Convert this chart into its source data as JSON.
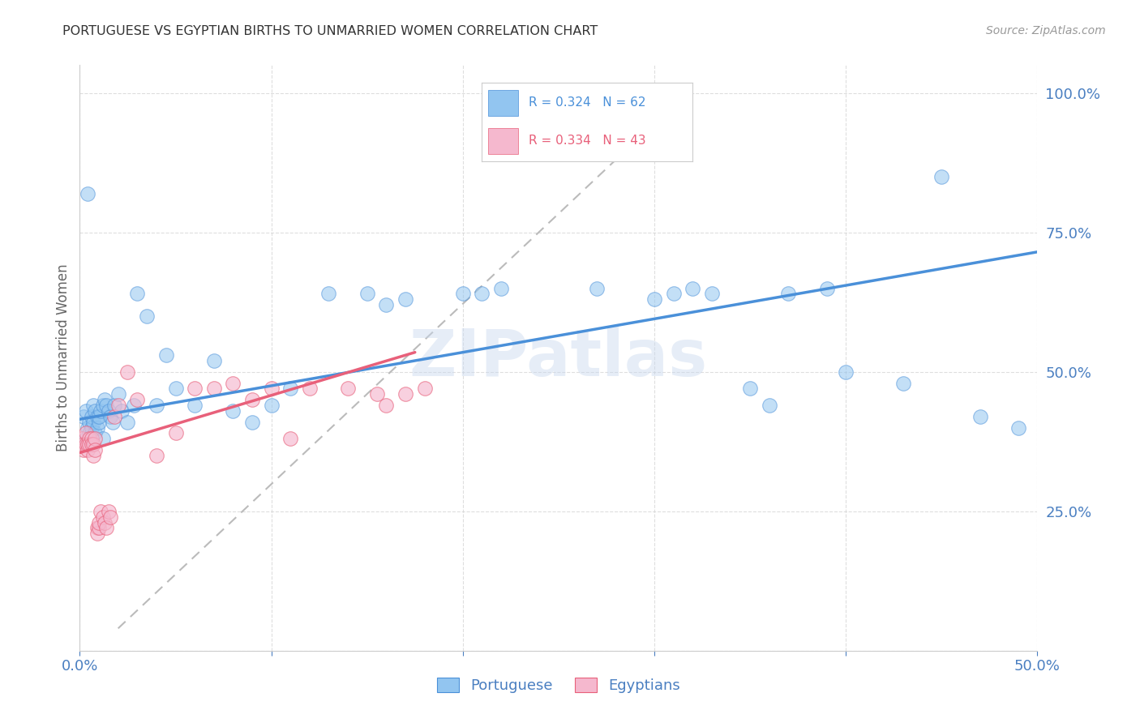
{
  "title": "PORTUGUESE VS EGYPTIAN BIRTHS TO UNMARRIED WOMEN CORRELATION CHART",
  "source": "Source: ZipAtlas.com",
  "ylabel": "Births to Unmarried Women",
  "xlim": [
    0.0,
    0.5
  ],
  "ylim": [
    0.0,
    1.05
  ],
  "watermark": "ZIPatlas",
  "legend_blue_r": "R = 0.324",
  "legend_blue_n": "N = 62",
  "legend_pink_r": "R = 0.334",
  "legend_pink_n": "N = 43",
  "legend_blue_label": "Portuguese",
  "legend_pink_label": "Egyptians",
  "blue_color": "#92c5f0",
  "pink_color": "#f5b8ce",
  "blue_line_color": "#4a90d9",
  "pink_line_color": "#e8607a",
  "axis_tick_color": "#4a7fc1",
  "grid_color": "#d0d0d0",
  "blue_line": [
    0.0,
    0.5,
    0.415,
    0.715
  ],
  "pink_line": [
    0.0,
    0.175,
    0.355,
    0.535
  ],
  "diag_line": [
    0.02,
    0.32,
    0.04,
    1.01
  ],
  "port_x": [
    0.002,
    0.003,
    0.003,
    0.004,
    0.004,
    0.005,
    0.005,
    0.006,
    0.006,
    0.007,
    0.007,
    0.008,
    0.008,
    0.009,
    0.009,
    0.01,
    0.01,
    0.011,
    0.012,
    0.012,
    0.013,
    0.014,
    0.015,
    0.016,
    0.017,
    0.018,
    0.02,
    0.022,
    0.025,
    0.028,
    0.03,
    0.035,
    0.04,
    0.045,
    0.05,
    0.06,
    0.07,
    0.08,
    0.09,
    0.1,
    0.11,
    0.13,
    0.15,
    0.16,
    0.17,
    0.2,
    0.21,
    0.22,
    0.27,
    0.3,
    0.31,
    0.32,
    0.33,
    0.35,
    0.36,
    0.37,
    0.39,
    0.4,
    0.43,
    0.45,
    0.47,
    0.49
  ],
  "port_y": [
    0.42,
    0.43,
    0.38,
    0.4,
    0.82,
    0.41,
    0.39,
    0.4,
    0.42,
    0.41,
    0.44,
    0.39,
    0.43,
    0.42,
    0.4,
    0.41,
    0.42,
    0.43,
    0.38,
    0.44,
    0.45,
    0.44,
    0.43,
    0.42,
    0.41,
    0.44,
    0.46,
    0.43,
    0.41,
    0.44,
    0.64,
    0.6,
    0.44,
    0.53,
    0.47,
    0.44,
    0.52,
    0.43,
    0.41,
    0.44,
    0.47,
    0.64,
    0.64,
    0.62,
    0.63,
    0.64,
    0.64,
    0.65,
    0.65,
    0.63,
    0.64,
    0.65,
    0.64,
    0.47,
    0.44,
    0.64,
    0.65,
    0.5,
    0.48,
    0.85,
    0.42,
    0.4
  ],
  "egypt_x": [
    0.001,
    0.002,
    0.002,
    0.003,
    0.003,
    0.004,
    0.004,
    0.005,
    0.005,
    0.006,
    0.006,
    0.007,
    0.007,
    0.008,
    0.008,
    0.009,
    0.009,
    0.01,
    0.01,
    0.011,
    0.012,
    0.013,
    0.014,
    0.015,
    0.016,
    0.018,
    0.02,
    0.025,
    0.03,
    0.04,
    0.05,
    0.06,
    0.07,
    0.08,
    0.09,
    0.1,
    0.11,
    0.12,
    0.14,
    0.155,
    0.16,
    0.17,
    0.18
  ],
  "egypt_y": [
    0.38,
    0.37,
    0.36,
    0.39,
    0.37,
    0.36,
    0.37,
    0.38,
    0.37,
    0.38,
    0.37,
    0.35,
    0.37,
    0.38,
    0.36,
    0.22,
    0.21,
    0.22,
    0.23,
    0.25,
    0.24,
    0.23,
    0.22,
    0.25,
    0.24,
    0.42,
    0.44,
    0.5,
    0.45,
    0.35,
    0.39,
    0.47,
    0.47,
    0.48,
    0.45,
    0.47,
    0.38,
    0.47,
    0.47,
    0.46,
    0.44,
    0.46,
    0.47
  ]
}
